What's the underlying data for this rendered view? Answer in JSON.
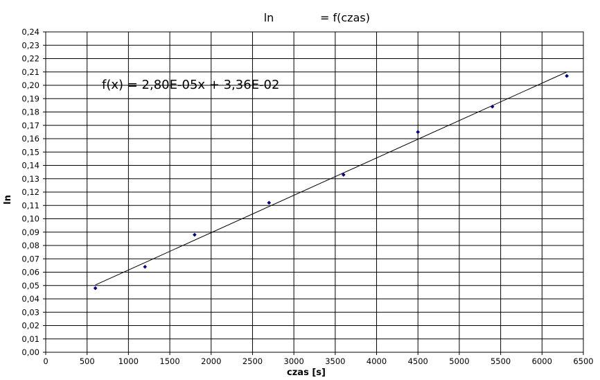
{
  "chart_data": {
    "type": "scatter",
    "title_left": "ln",
    "title_right": "= f(czas)",
    "xlabel": "czas [s]",
    "ylabel": "ln",
    "xlim": [
      0,
      6500
    ],
    "ylim": [
      0,
      0.24
    ],
    "x_step": 500,
    "y_step": 0.01,
    "grid": true,
    "point_color": "#000080",
    "series": [
      {
        "x": [
          600,
          1200,
          1800,
          2700,
          3600,
          4500,
          5400,
          6300
        ],
        "y": [
          0.048,
          0.064,
          0.088,
          0.112,
          0.133,
          0.165,
          0.184,
          0.207
        ]
      }
    ],
    "trendline": {
      "slope": 2.8e-05,
      "intercept": 0.0336,
      "x_range": [
        600,
        6300
      ],
      "equation": "f(x) = 2,80E-05x + 3,36E-02"
    }
  }
}
